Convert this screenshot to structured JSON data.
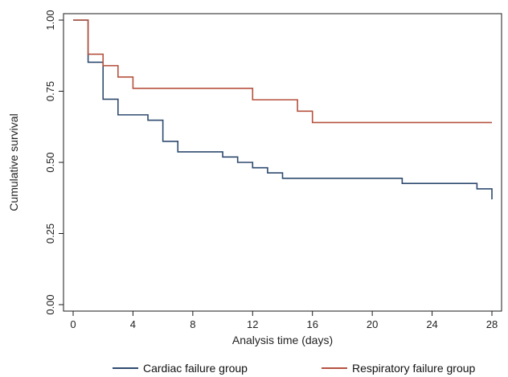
{
  "chart_data": {
    "type": "line",
    "step": true,
    "xlabel": "Analysis time (days)",
    "ylabel": "Cumulative survival",
    "xlim": [
      0,
      28
    ],
    "ylim": [
      0,
      1
    ],
    "x_ticks": [
      0,
      4,
      8,
      12,
      16,
      20,
      24,
      28
    ],
    "x_tick_labels": [
      "0",
      "4",
      "8",
      "12",
      "16",
      "20",
      "24",
      "28"
    ],
    "y_ticks": [
      0,
      0.25,
      0.5,
      0.75,
      1.0
    ],
    "y_tick_labels": [
      "0.00",
      "0.25",
      "0.50",
      "0.75",
      "1.00"
    ],
    "grid": false,
    "legend_position": "bottom",
    "series": [
      {
        "name": "Cardiac failure group",
        "color": "#2e4a6f",
        "x": [
          0,
          1,
          2,
          3,
          5,
          6,
          7,
          10,
          11,
          12,
          13,
          14,
          22,
          27,
          28
        ],
        "y": [
          1.0,
          0.852,
          0.722,
          0.667,
          0.648,
          0.574,
          0.537,
          0.519,
          0.5,
          0.481,
          0.463,
          0.444,
          0.426,
          0.407,
          0.37
        ]
      },
      {
        "name": "Respiratory failure group",
        "color": "#b5513f",
        "x": [
          0,
          1,
          2,
          3,
          4,
          12,
          15,
          16,
          28
        ],
        "y": [
          1.0,
          0.88,
          0.84,
          0.8,
          0.76,
          0.72,
          0.68,
          0.64,
          0.64
        ]
      }
    ]
  }
}
